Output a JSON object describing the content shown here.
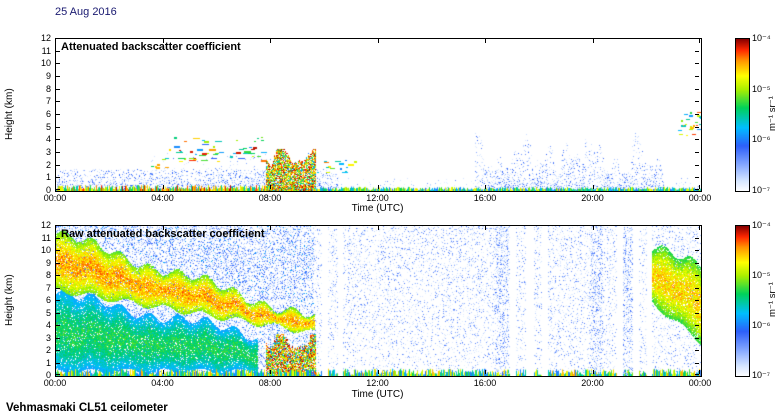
{
  "date_label": "25 Aug 2016",
  "footer": "Vehmasmaki CL51 ceilometer",
  "palette": {
    "low": "#ffffff",
    "blue": "#2d5efa",
    "cyan": "#00beff",
    "green": "#00d25a",
    "yellow": "#ffff00",
    "orange": "#ff9600",
    "red": "#ff2800",
    "dark_red": "#8a0000"
  },
  "chart_data": [
    {
      "type": "heatmap",
      "title": "Attenuated backscatter coefficient",
      "xlabel": "Time (UTC)",
      "ylabel": "Height (km)",
      "x_ticks": [
        "00:00",
        "04:00",
        "08:00",
        "12:00",
        "16:00",
        "20:00",
        "00:00"
      ],
      "y_ticks": [
        "0",
        "1",
        "2",
        "3",
        "4",
        "5",
        "6",
        "7",
        "8",
        "9",
        "10",
        "11",
        "12"
      ],
      "xlim": [
        0,
        24
      ],
      "ylim": [
        0,
        12
      ],
      "colorbar": {
        "label": "m⁻¹ sr⁻¹",
        "ticks": [
          "10⁻⁴",
          "10⁻⁵",
          "10⁻⁶",
          "10⁻⁷"
        ],
        "scale": "log",
        "max": "10⁻⁴",
        "min": "10⁻⁷"
      },
      "features": [
        {
          "kind": "speckle",
          "t": [
            0,
            10.5
          ],
          "h": [
            0,
            1.7
          ],
          "density": 0.8,
          "falloff": 2.2,
          "intensity": [
            0.05,
            0.32
          ]
        },
        {
          "kind": "speckle",
          "t": [
            10.5,
            24
          ],
          "h": [
            0,
            1.0
          ],
          "density": 0.14,
          "falloff": 2.5,
          "intensity": [
            0.04,
            0.25
          ]
        },
        {
          "kind": "speckle",
          "t": [
            15.6,
            22.6
          ],
          "h": [
            0,
            4.6
          ],
          "density": 0.3,
          "falloff": 1.6,
          "envelope": "spiky",
          "intensity": [
            0.05,
            0.3
          ]
        },
        {
          "kind": "speckle",
          "t": [
            3.5,
            8.0
          ],
          "h": [
            0,
            3.0
          ],
          "density": 0.07,
          "falloff": 1.2,
          "intensity": [
            0.05,
            0.28
          ]
        },
        {
          "kind": "surface",
          "t": [
            0,
            9.6
          ],
          "h": [
            0,
            0.4
          ],
          "intensity": [
            0.45,
            1.0
          ]
        },
        {
          "kind": "surface",
          "t": [
            9.6,
            24
          ],
          "h": [
            0,
            0.25
          ],
          "intensity": [
            0.3,
            0.8
          ]
        },
        {
          "kind": "dashes",
          "t": [
            3.3,
            4.1
          ],
          "h": [
            1.8,
            2.6
          ],
          "count": 8,
          "len": [
            0.05,
            0.2
          ],
          "intensity": [
            0.3,
            0.9
          ]
        },
        {
          "kind": "dashes",
          "t": [
            4.2,
            7.7
          ],
          "h": [
            2.2,
            4.3
          ],
          "count": 55,
          "len": [
            0.05,
            0.3
          ],
          "intensity": [
            0.3,
            1.0
          ]
        },
        {
          "kind": "column",
          "t": [
            7.85,
            9.65
          ],
          "h": [
            0,
            3.3
          ],
          "intensity": [
            0.3,
            1.0
          ]
        },
        {
          "kind": "dashes",
          "t": [
            9.65,
            11.2
          ],
          "h": [
            1.3,
            2.7
          ],
          "count": 16,
          "len": [
            0.05,
            0.25
          ],
          "intensity": [
            0.3,
            0.9
          ]
        },
        {
          "kind": "dashes",
          "t": [
            23.15,
            24
          ],
          "h": [
            4.3,
            6.3
          ],
          "count": 26,
          "len": [
            0.05,
            0.2
          ],
          "intensity": [
            0.35,
            1.0
          ]
        }
      ]
    },
    {
      "type": "heatmap",
      "title": "Raw attenuated backscatter coefficient",
      "xlabel": "Time (UTC)",
      "ylabel": "Height (km)",
      "x_ticks": [
        "00:00",
        "04:00",
        "08:00",
        "12:00",
        "16:00",
        "20:00",
        "00:00"
      ],
      "y_ticks": [
        "0",
        "1",
        "2",
        "3",
        "4",
        "5",
        "6",
        "7",
        "8",
        "9",
        "10",
        "11",
        "12"
      ],
      "xlim": [
        0,
        24
      ],
      "ylim": [
        0,
        12
      ],
      "colorbar": {
        "label": "m⁻¹ sr⁻¹",
        "ticks": [
          "10⁻⁴",
          "10⁻⁵",
          "10⁻⁶",
          "10⁻⁷"
        ],
        "scale": "log",
        "max": "10⁻⁴",
        "min": "10⁻⁷"
      },
      "features": [
        {
          "kind": "speckle",
          "t": [
            0,
            24
          ],
          "h": [
            0,
            12
          ],
          "density": 0.3,
          "falloff": 0.85,
          "intensity": [
            0.04,
            0.26
          ]
        },
        {
          "kind": "speckle",
          "t": [
            0,
            9.6
          ],
          "h": [
            0,
            12
          ],
          "density": 0.45,
          "falloff": 0.9,
          "intensity": [
            0.08,
            0.4
          ]
        },
        {
          "kind": "band",
          "t": [
            0,
            7.5
          ],
          "hTop": [
            6.5,
            3.2
          ],
          "hBot": [
            0.3,
            0.3
          ],
          "intensity": [
            0.3,
            0.62
          ]
        },
        {
          "kind": "band",
          "t": [
            0,
            9.6
          ],
          "hTop": [
            11.3,
            4.6
          ],
          "hBot": [
            6.8,
            3.4
          ],
          "intensity": [
            0.5,
            0.92
          ]
        },
        {
          "kind": "column",
          "t": [
            7.85,
            9.65
          ],
          "h": [
            0,
            3.3
          ],
          "intensity": [
            0.3,
            1.0
          ]
        },
        {
          "kind": "surface",
          "t": [
            0,
            24
          ],
          "h": [
            0,
            0.5
          ],
          "intensity": [
            0.3,
            0.85
          ]
        },
        {
          "kind": "band",
          "t": [
            22.2,
            24
          ],
          "hTop": [
            10.2,
            8.6
          ],
          "hBot": [
            5.8,
            2.6
          ],
          "intensity": [
            0.45,
            0.88
          ]
        },
        {
          "kind": "speckle",
          "t": [
            16.35,
            16.85
          ],
          "h": [
            0,
            12
          ],
          "density": 0.55,
          "falloff": 0.9,
          "intensity": [
            0.06,
            0.3
          ]
        },
        {
          "kind": "speckle",
          "t": [
            19.9,
            20.35
          ],
          "h": [
            0,
            12
          ],
          "density": 0.5,
          "falloff": 0.9,
          "intensity": [
            0.06,
            0.3
          ]
        },
        {
          "kind": "speckle",
          "t": [
            21.1,
            21.45
          ],
          "h": [
            0,
            12
          ],
          "density": 0.5,
          "falloff": 0.9,
          "intensity": [
            0.06,
            0.3
          ]
        },
        {
          "kind": "gaps",
          "t_list": [
            [
              9.9,
              10.15
            ],
            [
              10.5,
              10.7
            ],
            [
              16.9,
              17.15
            ],
            [
              17.5,
              17.8
            ],
            [
              18.1,
              18.35
            ],
            [
              20.9,
              21.15
            ],
            [
              21.5,
              21.75
            ],
            [
              22.0,
              22.2
            ]
          ]
        }
      ]
    }
  ]
}
